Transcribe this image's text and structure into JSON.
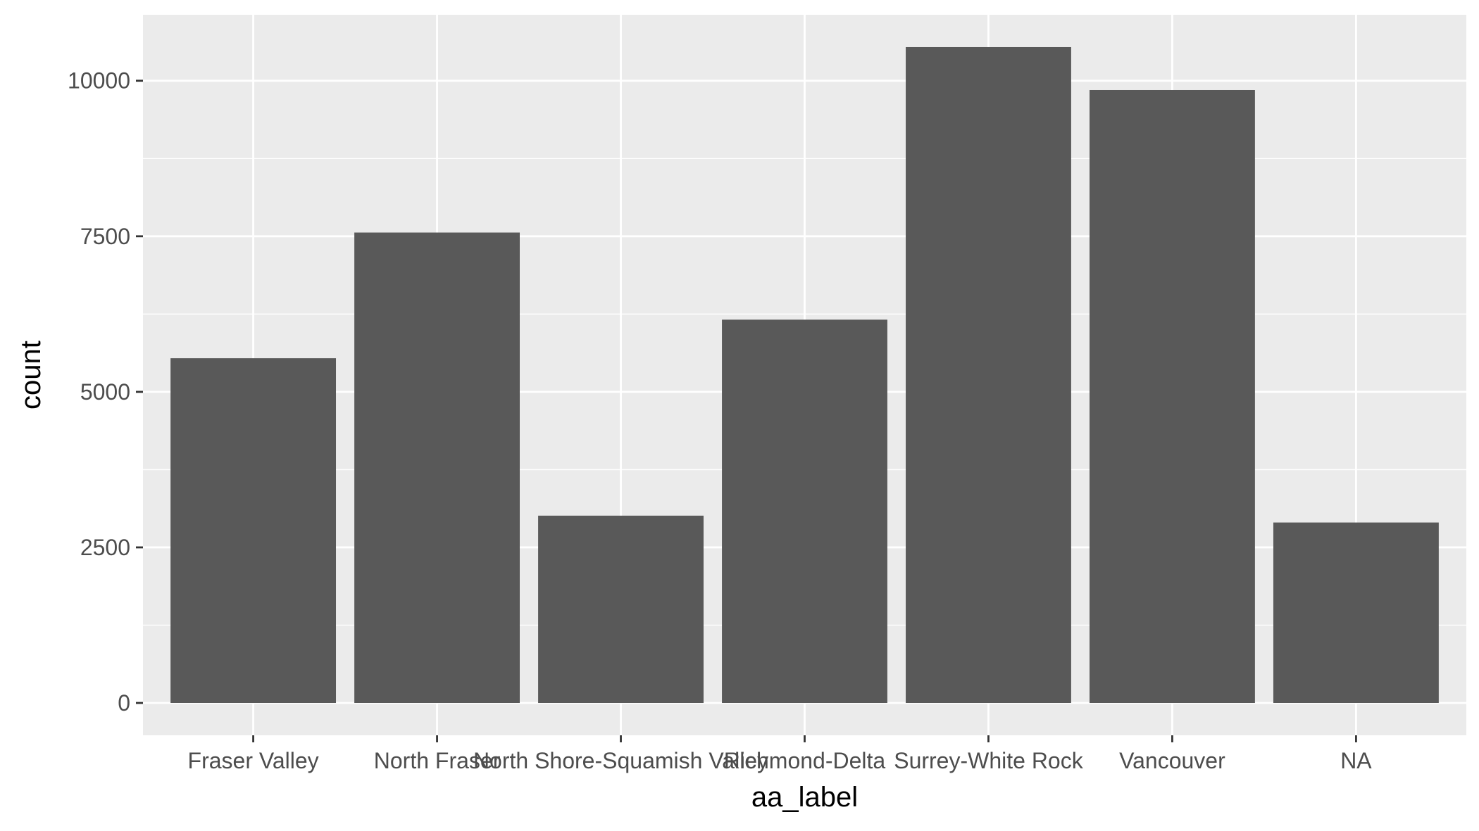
{
  "chart_data": {
    "type": "bar",
    "title": "",
    "xlabel": "aa_label",
    "ylabel": "count",
    "categories": [
      "Fraser Valley",
      "North Fraser",
      "North Shore-Squamish Valley",
      "Richmond-Delta",
      "Surrey-White Rock",
      "Vancouver",
      "NA"
    ],
    "values": [
      5540,
      7560,
      3010,
      6160,
      10540,
      9850,
      2900
    ],
    "ylim": [
      -520,
      11060
    ],
    "yticks": [
      0,
      2500,
      5000,
      7500,
      10000
    ],
    "ytick_labels": [
      "0",
      "2500",
      "5000",
      "7500",
      "10000"
    ],
    "grid": true,
    "legend": "none",
    "colors": {
      "panel": "#ebebeb",
      "grid_major": "#ffffff",
      "bar": "#595959",
      "tick": "#333333"
    }
  }
}
